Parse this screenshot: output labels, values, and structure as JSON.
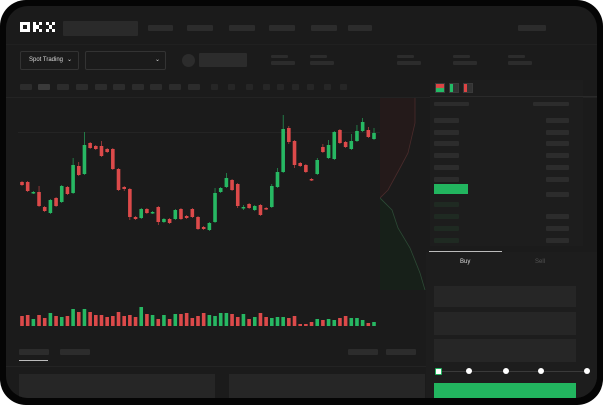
{
  "header": {
    "logo": "OKX"
  },
  "toolbar": {
    "market_selector": "Spot Trading"
  },
  "trade_panel": {
    "tabs": [
      {
        "label": "Buy",
        "active": true
      },
      {
        "label": "Sell",
        "active": false
      }
    ],
    "slider_percent": 0,
    "slider_stops": 5
  },
  "colors": {
    "up": "#27b863",
    "down": "#dc4a4a",
    "bg": "#1b1b1b",
    "accent": "#22b55f"
  },
  "chart_data": {
    "type": "candlestick",
    "title": "",
    "xlabel": "",
    "ylabel": "",
    "ylim": [
      0,
      140
    ],
    "grid": false,
    "candles": [
      [
        58,
        59,
        54,
        55
      ],
      [
        58,
        59,
        48,
        49
      ],
      [
        47,
        49,
        46,
        48
      ],
      [
        48,
        54,
        33,
        34
      ],
      [
        33,
        34,
        28,
        29
      ],
      [
        27,
        41,
        26,
        40
      ],
      [
        42,
        43,
        33,
        34
      ],
      [
        38,
        55,
        37,
        54
      ],
      [
        53,
        54,
        45,
        46
      ],
      [
        47,
        82,
        46,
        75
      ],
      [
        74,
        78,
        64,
        65
      ],
      [
        66,
        108,
        65,
        95
      ],
      [
        97,
        98,
        91,
        92
      ],
      [
        94,
        95,
        90,
        91
      ],
      [
        94,
        99,
        83,
        84
      ],
      [
        91,
        92,
        87,
        88
      ],
      [
        91,
        92,
        70,
        71
      ],
      [
        71,
        72,
        49,
        50
      ],
      [
        53,
        54,
        49,
        51
      ],
      [
        51,
        52,
        20,
        23
      ],
      [
        23,
        24,
        20,
        21
      ],
      [
        22,
        32,
        21,
        31
      ],
      [
        31,
        32,
        26,
        27
      ],
      [
        27,
        29,
        26,
        28
      ],
      [
        33,
        34,
        15,
        18
      ],
      [
        18,
        22,
        17,
        21
      ],
      [
        21,
        22,
        16,
        17
      ],
      [
        21,
        31,
        20,
        30
      ],
      [
        31,
        32,
        20,
        21
      ],
      [
        24,
        25,
        21,
        22
      ],
      [
        31,
        32,
        22,
        23
      ],
      [
        23,
        24,
        10,
        11
      ],
      [
        13,
        14,
        10,
        11
      ],
      [
        10,
        18,
        9,
        17
      ],
      [
        18,
        52,
        17,
        47
      ],
      [
        48,
        53,
        47,
        52
      ],
      [
        53,
        67,
        52,
        62
      ],
      [
        60,
        61,
        49,
        50
      ],
      [
        56,
        57,
        32,
        34
      ],
      [
        32,
        35,
        30,
        33
      ],
      [
        36,
        37,
        31,
        32
      ],
      [
        30,
        35,
        29,
        34
      ],
      [
        35,
        36,
        24,
        25
      ],
      [
        32,
        33,
        30,
        31
      ],
      [
        33,
        56,
        32,
        54
      ],
      [
        53,
        72,
        52,
        68
      ],
      [
        68,
        125,
        67,
        111
      ],
      [
        112,
        114,
        96,
        98
      ],
      [
        99,
        100,
        72,
        75
      ],
      [
        77,
        78,
        73,
        74
      ],
      [
        75,
        76,
        67,
        68
      ],
      [
        61,
        62,
        59,
        60
      ],
      [
        66,
        82,
        65,
        80
      ],
      [
        93,
        96,
        87,
        88
      ],
      [
        82,
        100,
        81,
        95
      ],
      [
        81,
        109,
        80,
        108
      ],
      [
        110,
        111,
        96,
        97
      ],
      [
        98,
        99,
        92,
        93
      ],
      [
        91,
        106,
        90,
        99
      ],
      [
        99,
        115,
        98,
        109
      ],
      [
        109,
        122,
        108,
        118
      ],
      [
        110,
        113,
        102,
        103
      ],
      [
        101,
        112,
        100,
        107
      ]
    ],
    "volume": [
      10,
      11,
      7,
      11,
      8,
      13,
      10,
      9,
      10,
      17,
      14,
      17,
      14,
      11,
      11,
      9,
      10,
      14,
      10,
      11,
      9,
      19,
      12,
      11,
      7,
      11,
      7,
      12,
      12,
      13,
      8,
      10,
      13,
      11,
      10,
      13,
      13,
      12,
      9,
      12,
      7,
      9,
      13,
      9,
      8,
      9,
      9,
      8,
      10,
      2,
      2,
      4,
      7,
      6,
      7,
      6,
      8,
      10,
      8,
      8,
      6,
      3,
      4
    ]
  }
}
